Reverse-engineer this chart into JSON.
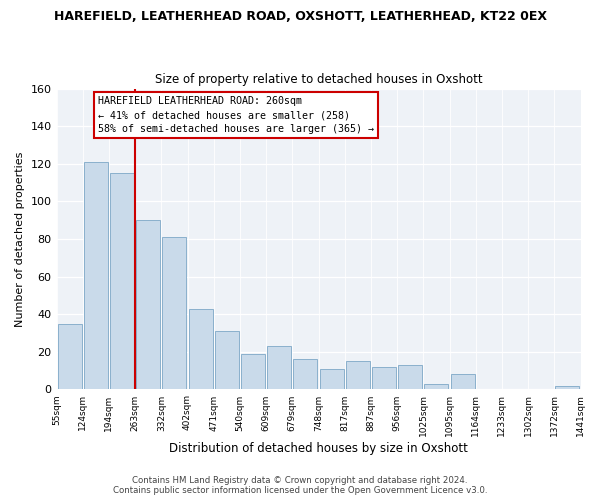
{
  "title_line1": "HAREFIELD, LEATHERHEAD ROAD, OXSHOTT, LEATHERHEAD, KT22 0EX",
  "title_line2": "Size of property relative to detached houses in Oxshott",
  "xlabel": "Distribution of detached houses by size in Oxshott",
  "ylabel": "Number of detached properties",
  "bin_labels": [
    "55sqm",
    "124sqm",
    "194sqm",
    "263sqm",
    "332sqm",
    "402sqm",
    "471sqm",
    "540sqm",
    "609sqm",
    "679sqm",
    "748sqm",
    "817sqm",
    "887sqm",
    "956sqm",
    "1025sqm",
    "1095sqm",
    "1164sqm",
    "1233sqm",
    "1302sqm",
    "1372sqm",
    "1441sqm"
  ],
  "bar_heights": [
    35,
    121,
    115,
    90,
    81,
    43,
    31,
    19,
    23,
    16,
    11,
    15,
    12,
    13,
    3,
    8,
    0,
    0,
    0,
    2
  ],
  "bar_color": "#c9daea",
  "bar_edge_color": "#8ab0cc",
  "marker_bar_index": 3,
  "marker_color": "#cc0000",
  "ylim": [
    0,
    160
  ],
  "yticks": [
    0,
    20,
    40,
    60,
    80,
    100,
    120,
    140,
    160
  ],
  "annotation_title": "HAREFIELD LEATHERHEAD ROAD: 260sqm",
  "annotation_line1": "← 41% of detached houses are smaller (258)",
  "annotation_line2": "58% of semi-detached houses are larger (365) →",
  "footer_line1": "Contains HM Land Registry data © Crown copyright and database right 2024.",
  "footer_line2": "Contains public sector information licensed under the Open Government Licence v3.0."
}
